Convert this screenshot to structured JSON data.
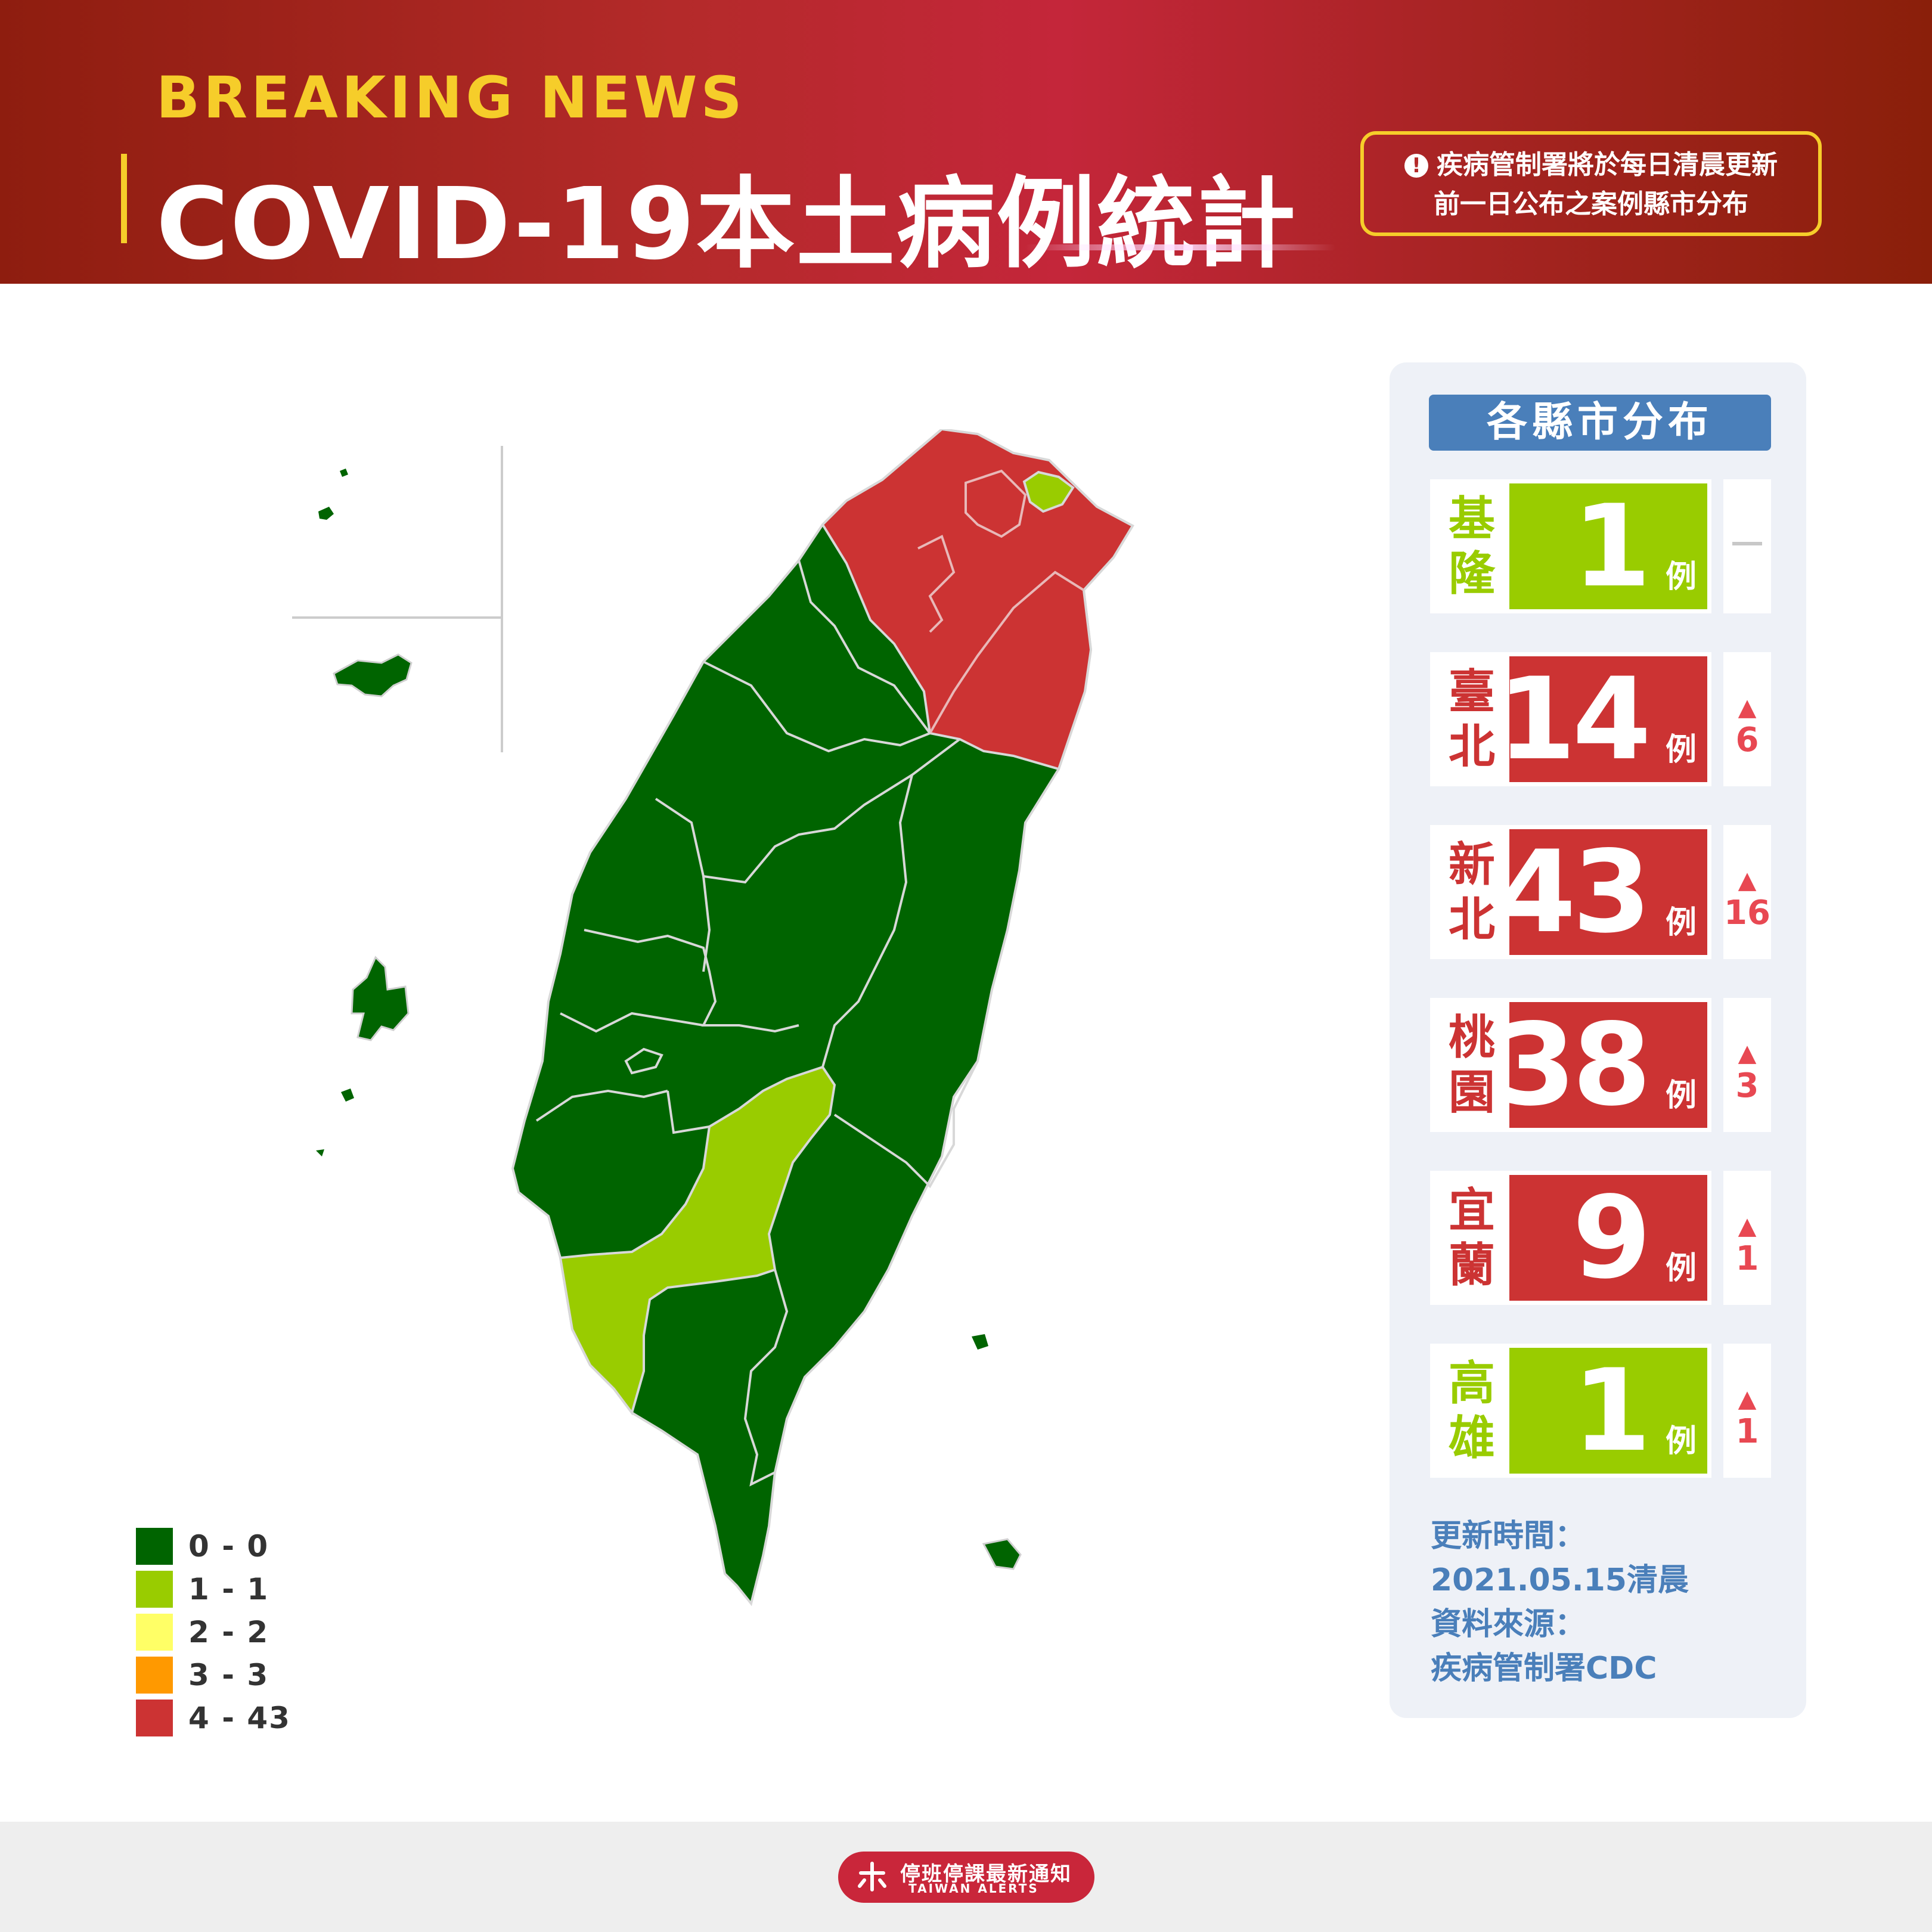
{
  "header": {
    "kicker": "BREAKING NEWS",
    "title": "COVID-19本土病例統計",
    "notice_line1": "疾病管制署將於每日清晨更新",
    "notice_line2": "前一日公布之案例縣市分布",
    "notice_icon": "!"
  },
  "colors": {
    "level_0": "#006400",
    "level_1": "#99cc00",
    "level_2": "#ffff66",
    "level_3": "#ff9900",
    "level_4": "#cc3333",
    "header_red": "#b42a2a",
    "accent_yellow": "#f6cd2a",
    "panel_blue": "#4a7fba"
  },
  "legend": [
    {
      "label": "0 - 0",
      "color": "#006400"
    },
    {
      "label": "1 - 1",
      "color": "#99cc00"
    },
    {
      "label": "2 - 2",
      "color": "#ffff66"
    },
    {
      "label": "3 - 3",
      "color": "#ff9900"
    },
    {
      "label": "4 - 43",
      "color": "#cc3333"
    }
  ],
  "panel": {
    "title": "各縣市分布",
    "unit": "例",
    "items": [
      {
        "name1": "基",
        "name2": "隆",
        "count": "1",
        "change": "",
        "trend": "none",
        "color": "#99cc00"
      },
      {
        "name1": "臺",
        "name2": "北",
        "count": "14",
        "change": "6",
        "trend": "up",
        "color": "#cc3333"
      },
      {
        "name1": "新",
        "name2": "北",
        "count": "43",
        "change": "16",
        "trend": "up",
        "color": "#cc3333"
      },
      {
        "name1": "桃",
        "name2": "園",
        "count": "38",
        "change": "3",
        "trend": "up",
        "color": "#cc3333"
      },
      {
        "name1": "宜",
        "name2": "蘭",
        "count": "9",
        "change": "1",
        "trend": "up",
        "color": "#cc3333"
      },
      {
        "name1": "高",
        "name2": "雄",
        "count": "1",
        "change": "1",
        "trend": "up",
        "color": "#99cc00"
      }
    ],
    "update_label": "更新時間：",
    "update_value": "2021.05.15清晨",
    "source_label": "資料來源：",
    "source_value": "疾病管制署CDC"
  },
  "footer": {
    "brand_name": "停班停課最新通知",
    "brand_sub": "TAIWAN ALERTS"
  }
}
